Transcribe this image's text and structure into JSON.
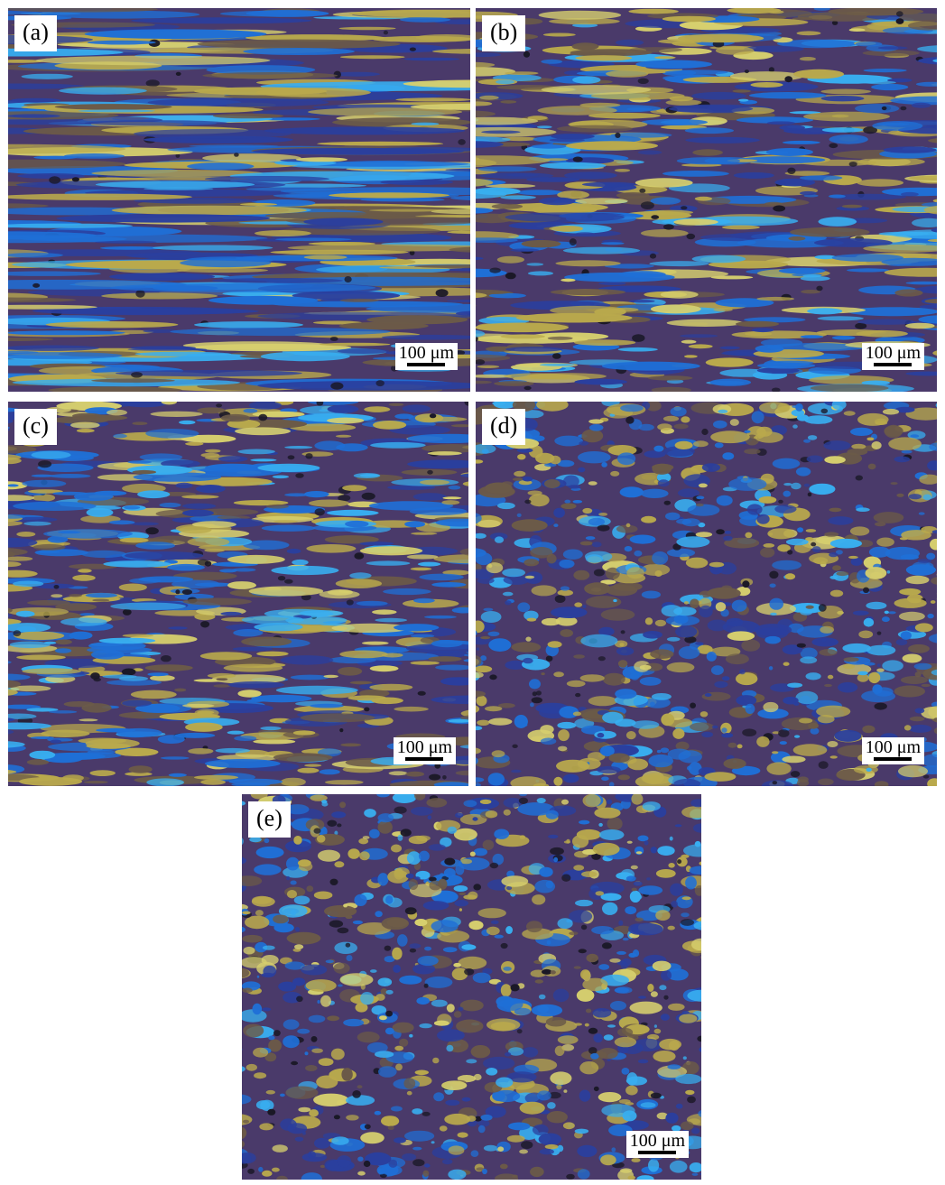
{
  "panels": [
    {
      "label": "(a)",
      "scale_bar": "100 μm"
    },
    {
      "label": "(b)",
      "scale_bar": "100 μm"
    },
    {
      "label": "(c)",
      "scale_bar": "100 μm"
    },
    {
      "label": "(d)",
      "scale_bar": "100 μm"
    },
    {
      "label": "(e)",
      "scale_bar": "100 μm"
    }
  ]
}
